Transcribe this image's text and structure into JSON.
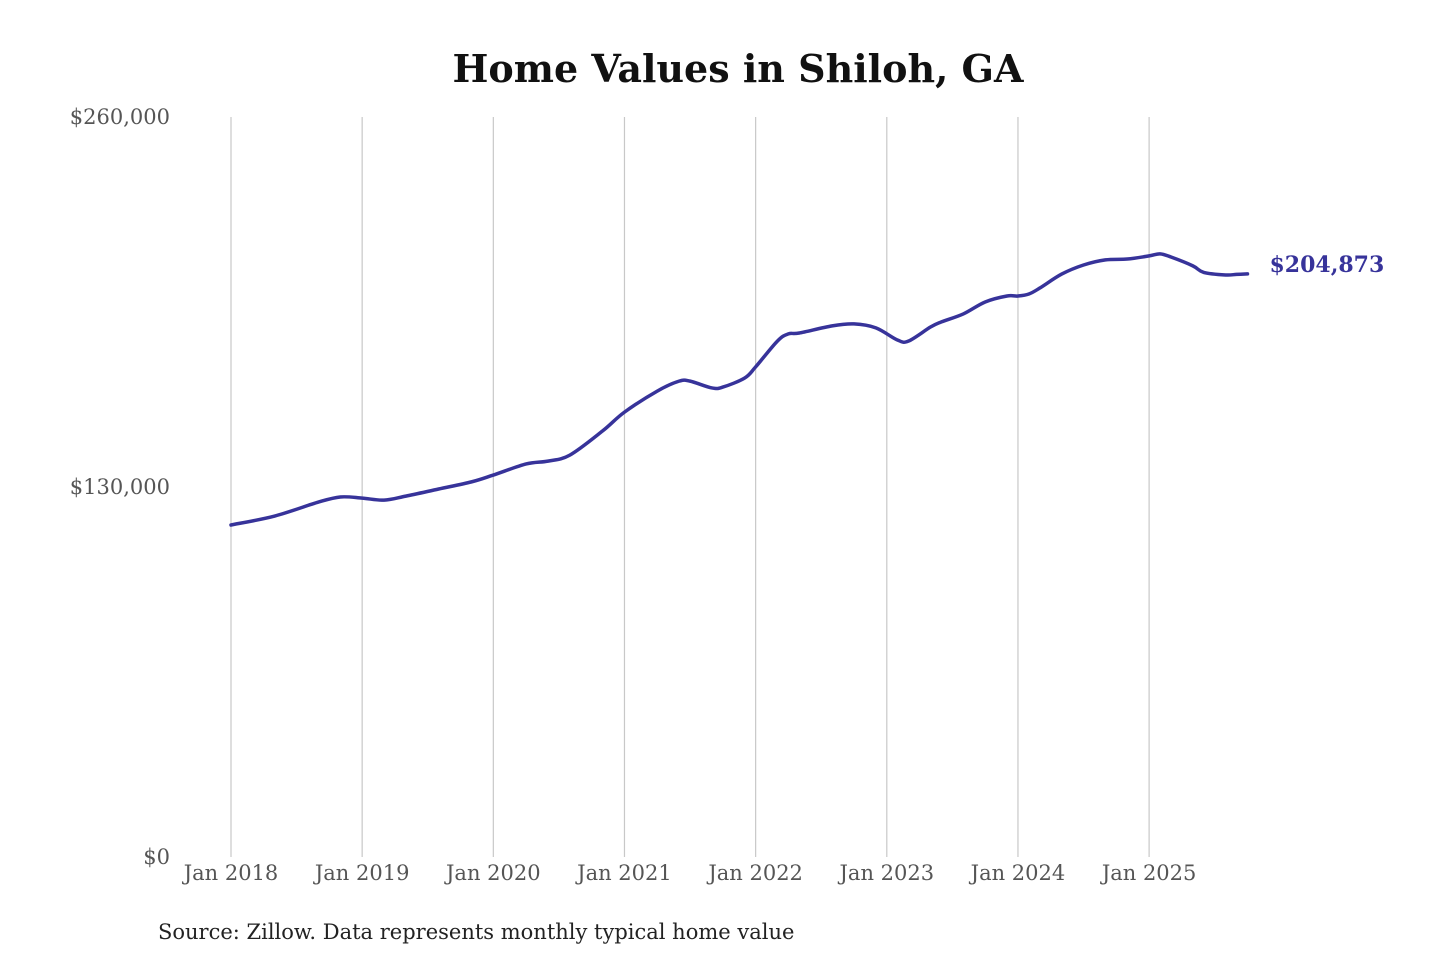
{
  "chart_data": {
    "type": "line",
    "title": "Home Values in Shiloh, GA",
    "xlabel": "",
    "ylabel": "",
    "ylim": [
      0,
      260000
    ],
    "y_ticks": [
      0,
      130000,
      260000
    ],
    "y_tick_labels": [
      "$0",
      "$130,000",
      "$260,000"
    ],
    "x_ticks": [
      "2018-01",
      "2019-01",
      "2020-01",
      "2021-01",
      "2022-01",
      "2023-01",
      "2024-01",
      "2025-01"
    ],
    "x_tick_labels": [
      "Jan 2018",
      "Jan 2019",
      "Jan 2020",
      "Jan 2021",
      "Jan 2022",
      "Jan 2023",
      "Jan 2024",
      "Jan 2025"
    ],
    "xlim": [
      "2018-01",
      "2025-10"
    ],
    "grid": "vertical",
    "line_color": "#37339a",
    "end_label": "$204,873",
    "source": "Source: Zillow. Data represents monthly typical home value",
    "series": [
      {
        "points": [
          [
            "2018-01",
            116650
          ],
          [
            "2018-05",
            119800
          ],
          [
            "2018-09",
            124700
          ],
          [
            "2018-11",
            126500
          ],
          [
            "2019-01",
            126100
          ],
          [
            "2019-03",
            125400
          ],
          [
            "2019-05",
            126800
          ],
          [
            "2019-08",
            129300
          ],
          [
            "2019-11",
            131800
          ],
          [
            "2020-01",
            134200
          ],
          [
            "2020-04",
            138100
          ],
          [
            "2020-06",
            139100
          ],
          [
            "2020-08",
            141200
          ],
          [
            "2020-11",
            149700
          ],
          [
            "2021-01",
            156300
          ],
          [
            "2021-04",
            163700
          ],
          [
            "2021-06",
            167200
          ],
          [
            "2021-07",
            167200
          ],
          [
            "2021-09",
            164800
          ],
          [
            "2021-10",
            165100
          ],
          [
            "2021-12",
            168300
          ],
          [
            "2022-01",
            172200
          ],
          [
            "2022-03",
            181300
          ],
          [
            "2022-04",
            183800
          ],
          [
            "2022-05",
            184100
          ],
          [
            "2022-08",
            186600
          ],
          [
            "2022-10",
            187300
          ],
          [
            "2022-12",
            185900
          ],
          [
            "2023-02",
            181600
          ],
          [
            "2023-03",
            181300
          ],
          [
            "2023-05",
            186200
          ],
          [
            "2023-06",
            188000
          ],
          [
            "2023-08",
            190800
          ],
          [
            "2023-10",
            195000
          ],
          [
            "2023-12",
            197100
          ],
          [
            "2024-01",
            197100
          ],
          [
            "2024-02",
            197800
          ],
          [
            "2024-03",
            199900
          ],
          [
            "2024-05",
            204800
          ],
          [
            "2024-07",
            208000
          ],
          [
            "2024-09",
            209800
          ],
          [
            "2024-11",
            210100
          ],
          [
            "2025-01",
            211200
          ],
          [
            "2025-02",
            211900
          ],
          [
            "2025-03",
            210800
          ],
          [
            "2025-05",
            207700
          ],
          [
            "2025-06",
            205400
          ],
          [
            "2025-08",
            204500
          ],
          [
            "2025-09",
            204700
          ],
          [
            "2025-10",
            204873
          ]
        ]
      }
    ]
  }
}
